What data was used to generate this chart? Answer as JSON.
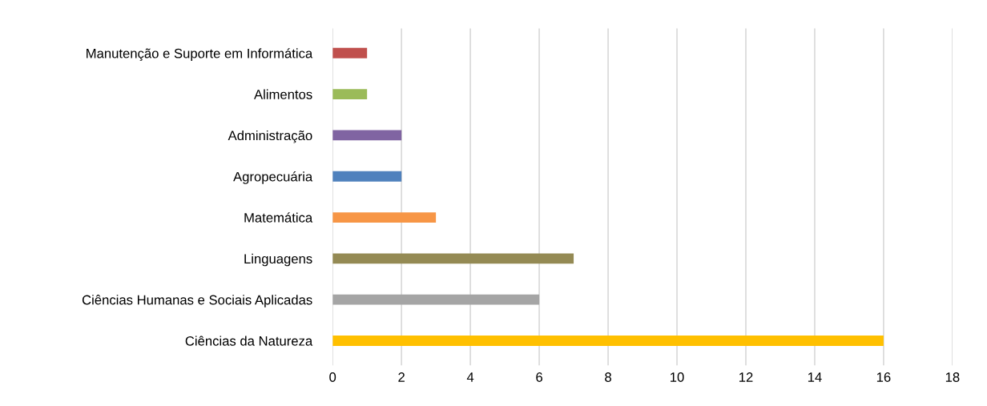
{
  "chart_data": {
    "type": "bar",
    "orientation": "horizontal",
    "categories": [
      "Manutenção e Suporte em Informática",
      "Alimentos",
      "Administração",
      "Agropecuária",
      "Matemática",
      "Linguagens",
      "Ciências Humanas e Sociais Aplicadas",
      "Ciências da Natureza"
    ],
    "values": [
      1,
      1,
      2,
      2,
      3,
      7,
      6,
      16
    ],
    "colors": [
      "#c0504d",
      "#9bbb59",
      "#8064a2",
      "#4f81bd",
      "#f79646",
      "#948a54",
      "#a5a5a5",
      "#ffc000"
    ],
    "xlim": [
      0,
      18
    ],
    "xticks": [
      0,
      2,
      4,
      6,
      8,
      10,
      12,
      14,
      16,
      18
    ],
    "grid": "x"
  }
}
